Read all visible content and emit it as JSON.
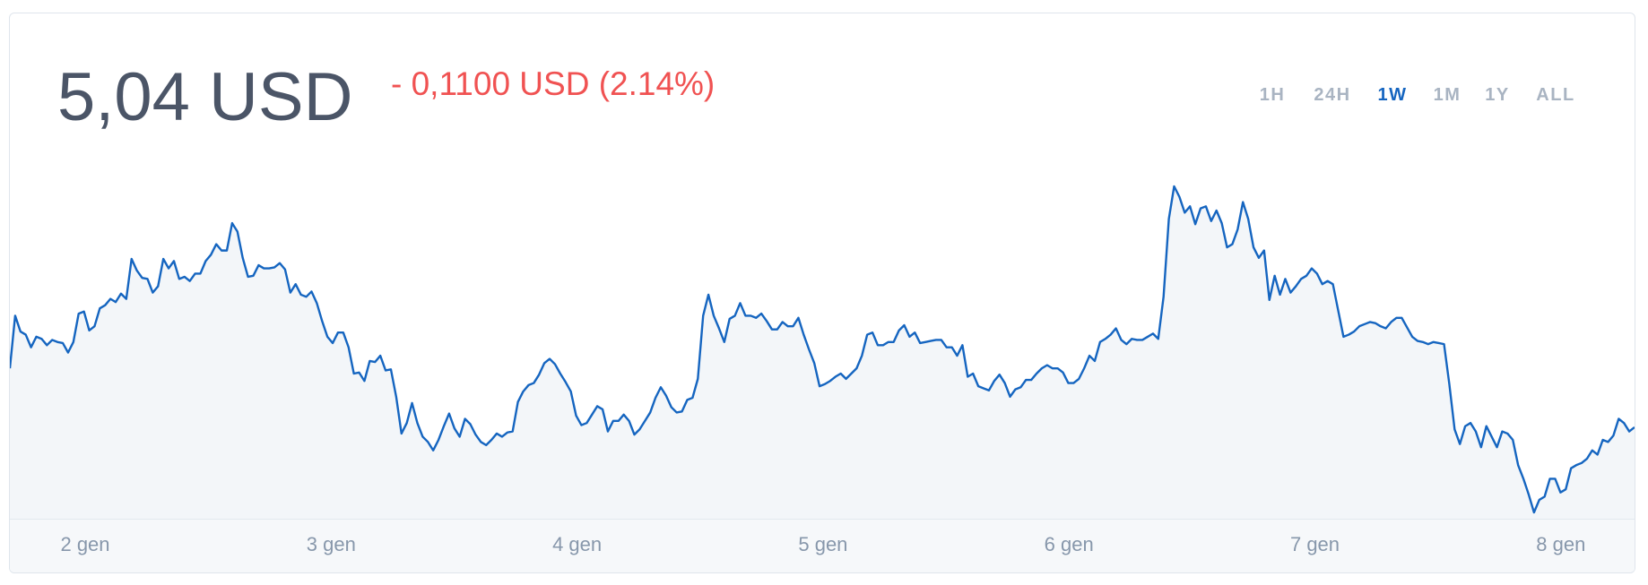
{
  "header": {
    "price": "5,04 USD",
    "change": "- 0,1100 USD (2.14%)",
    "change_color": "#f05252",
    "ranges": [
      "1H",
      "24H",
      "1W",
      "1M",
      "1Y",
      "ALL"
    ],
    "active_range": "1W"
  },
  "chart_data": {
    "type": "area",
    "color": "#1565c0",
    "fill": "#f3f6f9",
    "x_labels": [
      "2 gen",
      "3 gen",
      "4 gen",
      "5 gen",
      "6 gen",
      "7 gen",
      "8 gen"
    ],
    "values": [
      5.152,
      5.252,
      5.222,
      5.216,
      5.192,
      5.212,
      5.208,
      5.196,
      5.206,
      5.202,
      5.2,
      5.182,
      5.202,
      5.256,
      5.26,
      5.224,
      5.232,
      5.266,
      5.272,
      5.284,
      5.278,
      5.294,
      5.284,
      5.36,
      5.338,
      5.324,
      5.322,
      5.296,
      5.308,
      5.36,
      5.342,
      5.356,
      5.322,
      5.326,
      5.318,
      5.332,
      5.332,
      5.356,
      5.368,
      5.388,
      5.376,
      5.376,
      5.428,
      5.412,
      5.362,
      5.326,
      5.328,
      5.348,
      5.342,
      5.342,
      5.344,
      5.352,
      5.34,
      5.296,
      5.312,
      5.292,
      5.288,
      5.298,
      5.276,
      5.242,
      5.212,
      5.2,
      5.22,
      5.22,
      5.192,
      5.142,
      5.144,
      5.128,
      5.166,
      5.164,
      5.176,
      5.148,
      5.15,
      5.098,
      5.028,
      5.048,
      5.086,
      5.048,
      5.022,
      5.012,
      4.996,
      5.016,
      5.042,
      5.066,
      5.038,
      5.022,
      5.056,
      5.046,
      5.026,
      5.012,
      5.006,
      5.016,
      5.028,
      5.022,
      5.03,
      5.032,
      5.088,
      5.108,
      5.12,
      5.124,
      5.14,
      5.162,
      5.17,
      5.16,
      5.142,
      5.126,
      5.108,
      5.062,
      5.044,
      5.048,
      5.064,
      5.08,
      5.074,
      5.032,
      5.052,
      5.052,
      5.064,
      5.052,
      5.026,
      5.036,
      5.052,
      5.068,
      5.096,
      5.116,
      5.1,
      5.078,
      5.068,
      5.07,
      5.092,
      5.096,
      5.132,
      5.252,
      5.292,
      5.252,
      5.228,
      5.202,
      5.246,
      5.252,
      5.276,
      5.252,
      5.252,
      5.248,
      5.256,
      5.242,
      5.226,
      5.226,
      5.24,
      5.232,
      5.232,
      5.248,
      5.216,
      5.188,
      5.162,
      5.118,
      5.122,
      5.128,
      5.136,
      5.142,
      5.132,
      5.142,
      5.152,
      5.176,
      5.216,
      5.22,
      5.196,
      5.196,
      5.202,
      5.202,
      5.224,
      5.234,
      5.212,
      5.22,
      5.2,
      5.202,
      5.204,
      5.206,
      5.206,
      5.192,
      5.192,
      5.176,
      5.196,
      5.136,
      5.142,
      5.118,
      5.114,
      5.11,
      5.128,
      5.14,
      5.124,
      5.098,
      5.112,
      5.116,
      5.13,
      5.13,
      5.142,
      5.152,
      5.158,
      5.152,
      5.152,
      5.144,
      5.124,
      5.124,
      5.132,
      5.152,
      5.176,
      5.166,
      5.202,
      5.208,
      5.216,
      5.228,
      5.206,
      5.198,
      5.208,
      5.206,
      5.206,
      5.212,
      5.218,
      5.208,
      5.288,
      5.436,
      5.498,
      5.478,
      5.448,
      5.46,
      5.426,
      5.456,
      5.46,
      5.432,
      5.452,
      5.428,
      5.382,
      5.388,
      5.416,
      5.468,
      5.436,
      5.382,
      5.362,
      5.376,
      5.282,
      5.328,
      5.292,
      5.322,
      5.296,
      5.308,
      5.322,
      5.328,
      5.342,
      5.332,
      5.312,
      5.318,
      5.312,
      5.262,
      5.212,
      5.216,
      5.222,
      5.232,
      5.236,
      5.24,
      5.238,
      5.232,
      5.228,
      5.24,
      5.248,
      5.248,
      5.23,
      5.212,
      5.204,
      5.202,
      5.198,
      5.202,
      5.2,
      5.198,
      5.122,
      5.036,
      5.008,
      5.042,
      5.048,
      5.032,
      5.002,
      5.042,
      5.022,
      5.002,
      5.032,
      5.028,
      5.016,
      4.968,
      4.942,
      4.912,
      4.878,
      4.902,
      4.908,
      4.942,
      4.942,
      4.916,
      4.922,
      4.962,
      4.968,
      4.972,
      4.98,
      4.996,
      4.988,
      5.016,
      5.012,
      5.024,
      5.056,
      5.048,
      5.032,
      5.04
    ]
  }
}
